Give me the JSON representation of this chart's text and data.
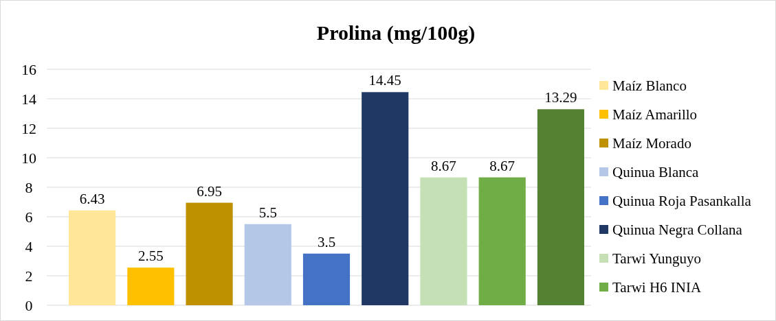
{
  "chart_data": {
    "type": "bar",
    "title": "Prolina (mg/100g)",
    "categories": [
      null
    ],
    "series": [
      {
        "name": "Maíz Blanco",
        "color": "#ffe699",
        "values": [
          6.43
        ]
      },
      {
        "name": "Maíz Amarillo",
        "color": "#ffc000",
        "values": [
          2.55
        ]
      },
      {
        "name": "Maíz Morado",
        "color": "#bf9000",
        "values": [
          6.95
        ]
      },
      {
        "name": "Quinua Blanca",
        "color": "#b4c7e7",
        "values": [
          5.5
        ]
      },
      {
        "name": "Quinua Roja Pasankalla",
        "color": "#4472c4",
        "values": [
          3.5
        ]
      },
      {
        "name": "Quinua Negra Collana",
        "color": "#203864",
        "values": [
          14.45
        ]
      },
      {
        "name": "Tarwi Yunguyo",
        "color": "#c5e0b4",
        "values": [
          8.67
        ]
      },
      {
        "name": "Tarwi H6 INIA",
        "color": "#70ad47",
        "values": [
          8.67
        ]
      },
      {
        "color": "#548235",
        "values": [
          13.29
        ]
      }
    ],
    "ylim": [
      0,
      16
    ],
    "yticks": [
      0,
      2,
      4,
      6,
      8,
      10,
      12,
      14,
      16
    ],
    "grid": "y",
    "legend": "right",
    "data_labels": true
  }
}
